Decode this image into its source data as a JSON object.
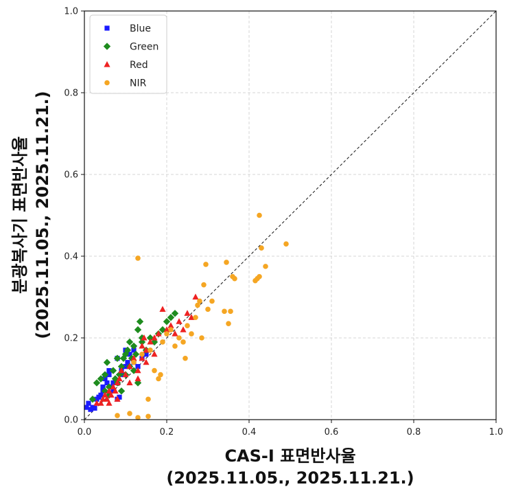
{
  "chart_data": {
    "type": "scatter",
    "title": "",
    "xlabel": "CAS-I 표면반사율",
    "xlabel_sub": "(2025.11.05., 2025.11.21.)",
    "ylabel": "분광복사기 표면반사율",
    "ylabel_sub": "(2025.11.05., 2025.11.21.)",
    "xlim": [
      0,
      1
    ],
    "ylim": [
      0,
      1
    ],
    "xticks": [
      "0.0",
      "0.2",
      "0.4",
      "0.6",
      "0.8",
      "1.0"
    ],
    "yticks": [
      "0.0",
      "0.2",
      "0.4",
      "0.6",
      "0.8",
      "1.0"
    ],
    "grid": true,
    "legend_position": "top-left",
    "reference_line": "1:1 dashed",
    "series": [
      {
        "name": "Blue",
        "color": "#1a1aff",
        "marker": "square",
        "points": [
          [
            0.005,
            0.03
          ],
          [
            0.01,
            0.04
          ],
          [
            0.015,
            0.025
          ],
          [
            0.02,
            0.03
          ],
          [
            0.025,
            0.028
          ],
          [
            0.03,
            0.05
          ],
          [
            0.035,
            0.055
          ],
          [
            0.04,
            0.06
          ],
          [
            0.045,
            0.08
          ],
          [
            0.05,
            0.1
          ],
          [
            0.055,
            0.09
          ],
          [
            0.06,
            0.11
          ],
          [
            0.065,
            0.08
          ],
          [
            0.07,
            0.07
          ],
          [
            0.075,
            0.095
          ],
          [
            0.08,
            0.05
          ],
          [
            0.085,
            0.055
          ],
          [
            0.09,
            0.12
          ],
          [
            0.095,
            0.11
          ],
          [
            0.1,
            0.13
          ],
          [
            0.105,
            0.14
          ],
          [
            0.11,
            0.16
          ],
          [
            0.12,
            0.14
          ],
          [
            0.13,
            0.13
          ],
          [
            0.14,
            0.15
          ],
          [
            0.15,
            0.16
          ],
          [
            0.06,
            0.12
          ],
          [
            0.07,
            0.09
          ],
          [
            0.1,
            0.17
          ],
          [
            0.045,
            0.07
          ],
          [
            0.08,
            0.15
          ],
          [
            0.12,
            0.17
          ]
        ]
      },
      {
        "name": "Green",
        "color": "#1e8c1e",
        "marker": "diamond",
        "points": [
          [
            0.02,
            0.05
          ],
          [
            0.03,
            0.09
          ],
          [
            0.04,
            0.1
          ],
          [
            0.05,
            0.11
          ],
          [
            0.055,
            0.14
          ],
          [
            0.06,
            0.08
          ],
          [
            0.07,
            0.12
          ],
          [
            0.075,
            0.1
          ],
          [
            0.08,
            0.15
          ],
          [
            0.085,
            0.11
          ],
          [
            0.09,
            0.13
          ],
          [
            0.095,
            0.15
          ],
          [
            0.1,
            0.16
          ],
          [
            0.105,
            0.17
          ],
          [
            0.11,
            0.19
          ],
          [
            0.115,
            0.15
          ],
          [
            0.12,
            0.18
          ],
          [
            0.125,
            0.16
          ],
          [
            0.13,
            0.22
          ],
          [
            0.135,
            0.24
          ],
          [
            0.14,
            0.19
          ],
          [
            0.15,
            0.17
          ],
          [
            0.16,
            0.2
          ],
          [
            0.17,
            0.19
          ],
          [
            0.18,
            0.21
          ],
          [
            0.19,
            0.22
          ],
          [
            0.2,
            0.24
          ],
          [
            0.21,
            0.25
          ],
          [
            0.22,
            0.26
          ],
          [
            0.08,
            0.09
          ],
          [
            0.06,
            0.06
          ],
          [
            0.1,
            0.11
          ],
          [
            0.13,
            0.09
          ],
          [
            0.12,
            0.12
          ],
          [
            0.09,
            0.07
          ],
          [
            0.05,
            0.07
          ],
          [
            0.14,
            0.2
          ],
          [
            0.11,
            0.13
          ]
        ]
      },
      {
        "name": "Red",
        "color": "#ee2222",
        "marker": "triangle",
        "points": [
          [
            0.03,
            0.04
          ],
          [
            0.04,
            0.04
          ],
          [
            0.045,
            0.05
          ],
          [
            0.05,
            0.06
          ],
          [
            0.055,
            0.05
          ],
          [
            0.06,
            0.07
          ],
          [
            0.065,
            0.06
          ],
          [
            0.07,
            0.08
          ],
          [
            0.075,
            0.07
          ],
          [
            0.08,
            0.09
          ],
          [
            0.085,
            0.1
          ],
          [
            0.09,
            0.12
          ],
          [
            0.1,
            0.11
          ],
          [
            0.11,
            0.13
          ],
          [
            0.12,
            0.15
          ],
          [
            0.13,
            0.12
          ],
          [
            0.14,
            0.18
          ],
          [
            0.145,
            0.2
          ],
          [
            0.15,
            0.17
          ],
          [
            0.16,
            0.19
          ],
          [
            0.17,
            0.2
          ],
          [
            0.18,
            0.21
          ],
          [
            0.19,
            0.27
          ],
          [
            0.2,
            0.22
          ],
          [
            0.21,
            0.23
          ],
          [
            0.22,
            0.21
          ],
          [
            0.23,
            0.24
          ],
          [
            0.24,
            0.22
          ],
          [
            0.25,
            0.26
          ],
          [
            0.26,
            0.25
          ],
          [
            0.27,
            0.3
          ],
          [
            0.13,
            0.1
          ],
          [
            0.08,
            0.05
          ],
          [
            0.06,
            0.04
          ],
          [
            0.15,
            0.14
          ],
          [
            0.11,
            0.09
          ],
          [
            0.17,
            0.16
          ],
          [
            0.14,
            0.15
          ]
        ]
      },
      {
        "name": "NIR",
        "color": "#f5a623",
        "marker": "circle",
        "points": [
          [
            0.08,
            0.01
          ],
          [
            0.11,
            0.015
          ],
          [
            0.13,
            0.005
          ],
          [
            0.155,
            0.008
          ],
          [
            0.155,
            0.05
          ],
          [
            0.17,
            0.12
          ],
          [
            0.18,
            0.1
          ],
          [
            0.185,
            0.11
          ],
          [
            0.19,
            0.19
          ],
          [
            0.2,
            0.21
          ],
          [
            0.21,
            0.22
          ],
          [
            0.22,
            0.18
          ],
          [
            0.23,
            0.2
          ],
          [
            0.24,
            0.19
          ],
          [
            0.245,
            0.15
          ],
          [
            0.25,
            0.23
          ],
          [
            0.26,
            0.21
          ],
          [
            0.27,
            0.25
          ],
          [
            0.275,
            0.28
          ],
          [
            0.28,
            0.29
          ],
          [
            0.285,
            0.2
          ],
          [
            0.29,
            0.33
          ],
          [
            0.295,
            0.38
          ],
          [
            0.3,
            0.27
          ],
          [
            0.31,
            0.29
          ],
          [
            0.34,
            0.265
          ],
          [
            0.345,
            0.385
          ],
          [
            0.35,
            0.235
          ],
          [
            0.355,
            0.265
          ],
          [
            0.36,
            0.35
          ],
          [
            0.365,
            0.345
          ],
          [
            0.415,
            0.34
          ],
          [
            0.42,
            0.345
          ],
          [
            0.425,
            0.35
          ],
          [
            0.43,
            0.42
          ],
          [
            0.44,
            0.375
          ],
          [
            0.425,
            0.5
          ],
          [
            0.49,
            0.43
          ],
          [
            0.13,
            0.395
          ],
          [
            0.12,
            0.14
          ],
          [
            0.14,
            0.16
          ],
          [
            0.16,
            0.17
          ]
        ]
      }
    ]
  }
}
